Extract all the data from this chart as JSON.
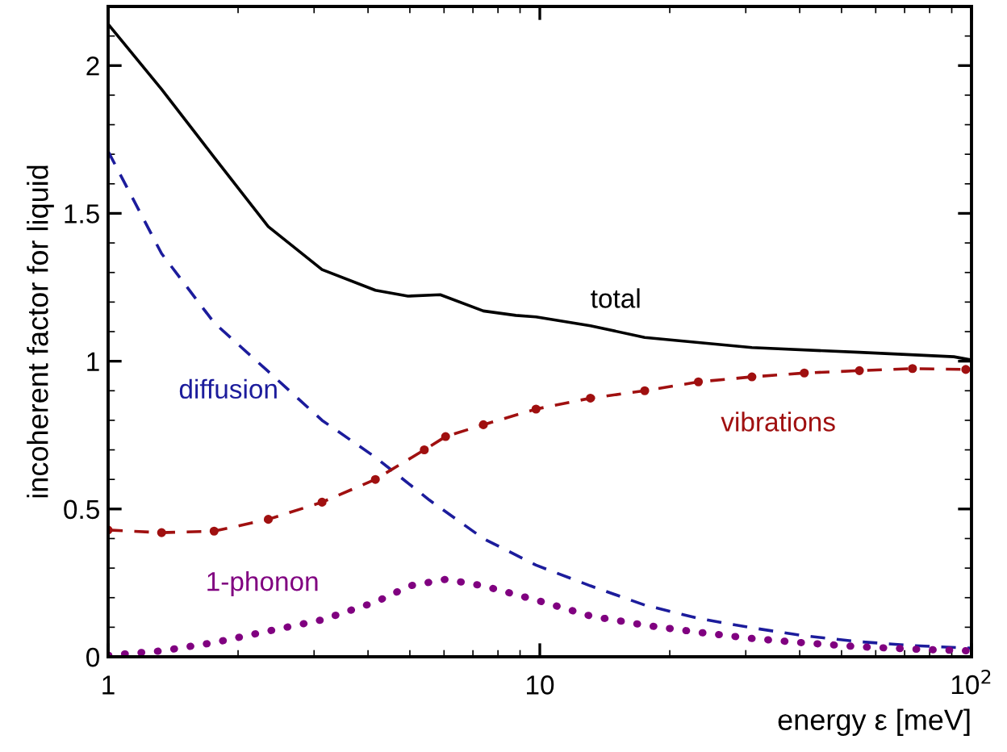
{
  "chart_data": {
    "type": "line",
    "xlabel": "energy ε [meV]",
    "ylabel": "incoherent factor for liquid",
    "log": "x",
    "xlim": [
      1,
      100
    ],
    "ylim": [
      0,
      2.2
    ],
    "xticks": [
      1,
      10,
      {
        "value": 100,
        "label": "10$^{2}$"
      }
    ],
    "yticks": [
      0,
      0.5,
      1,
      1.5,
      2
    ],
    "grid": false,
    "legend": false,
    "series": [
      {
        "name": "total",
        "color": "#000000",
        "line_style": "solid",
        "marker": "none",
        "x": [
          1,
          1.33,
          1.76,
          2.35,
          3.13,
          4.16,
          4.95,
          5.88,
          7.4,
          8.8,
          9.8,
          13.1,
          17.5,
          31,
          55,
          91,
          100
        ],
        "values": [
          2.14,
          1.92,
          1.69,
          1.455,
          1.31,
          1.24,
          1.22,
          1.225,
          1.17,
          1.155,
          1.15,
          1.12,
          1.08,
          1.046,
          1.03,
          1.015,
          1.004
        ]
      },
      {
        "name": "diffusion",
        "color": "#1c1c9c",
        "line_style": "dashed",
        "marker": "none",
        "x": [
          1,
          1.33,
          1.76,
          2.35,
          3.13,
          4.16,
          5.55,
          7.4,
          9.8,
          13.1,
          17.5,
          23.3,
          31,
          41,
          55,
          73,
          100
        ],
        "values": [
          1.71,
          1.364,
          1.13,
          0.965,
          0.8,
          0.675,
          0.53,
          0.4,
          0.31,
          0.24,
          0.175,
          0.13,
          0.098,
          0.071,
          0.051,
          0.038,
          0.029
        ]
      },
      {
        "name": "vibrations",
        "color": "#a01010",
        "line_style": "dashed",
        "marker": "circle",
        "x": [
          1,
          1.33,
          1.76,
          2.35,
          3.13,
          4.16,
          5.4,
          6.05,
          7.4,
          9.8,
          13.1,
          17.5,
          23.3,
          31,
          41,
          55,
          73,
          97
        ],
        "values": [
          0.429,
          0.42,
          0.425,
          0.465,
          0.523,
          0.6,
          0.7,
          0.745,
          0.785,
          0.838,
          0.875,
          0.9,
          0.93,
          0.947,
          0.96,
          0.968,
          0.975,
          0.972
        ]
      },
      {
        "name": "1-phonon",
        "color": "#800080",
        "line_style": "dotted",
        "marker": "none",
        "x": [
          1,
          1.33,
          1.76,
          2.35,
          3.13,
          4.16,
          5.0,
          6.05,
          7.4,
          9.8,
          13.1,
          17.5,
          23.3,
          31,
          41,
          55,
          73,
          100
        ],
        "values": [
          0.005,
          0.02,
          0.048,
          0.087,
          0.125,
          0.185,
          0.24,
          0.262,
          0.24,
          0.192,
          0.138,
          0.107,
          0.083,
          0.062,
          0.047,
          0.034,
          0.026,
          0.02
        ]
      }
    ]
  }
}
